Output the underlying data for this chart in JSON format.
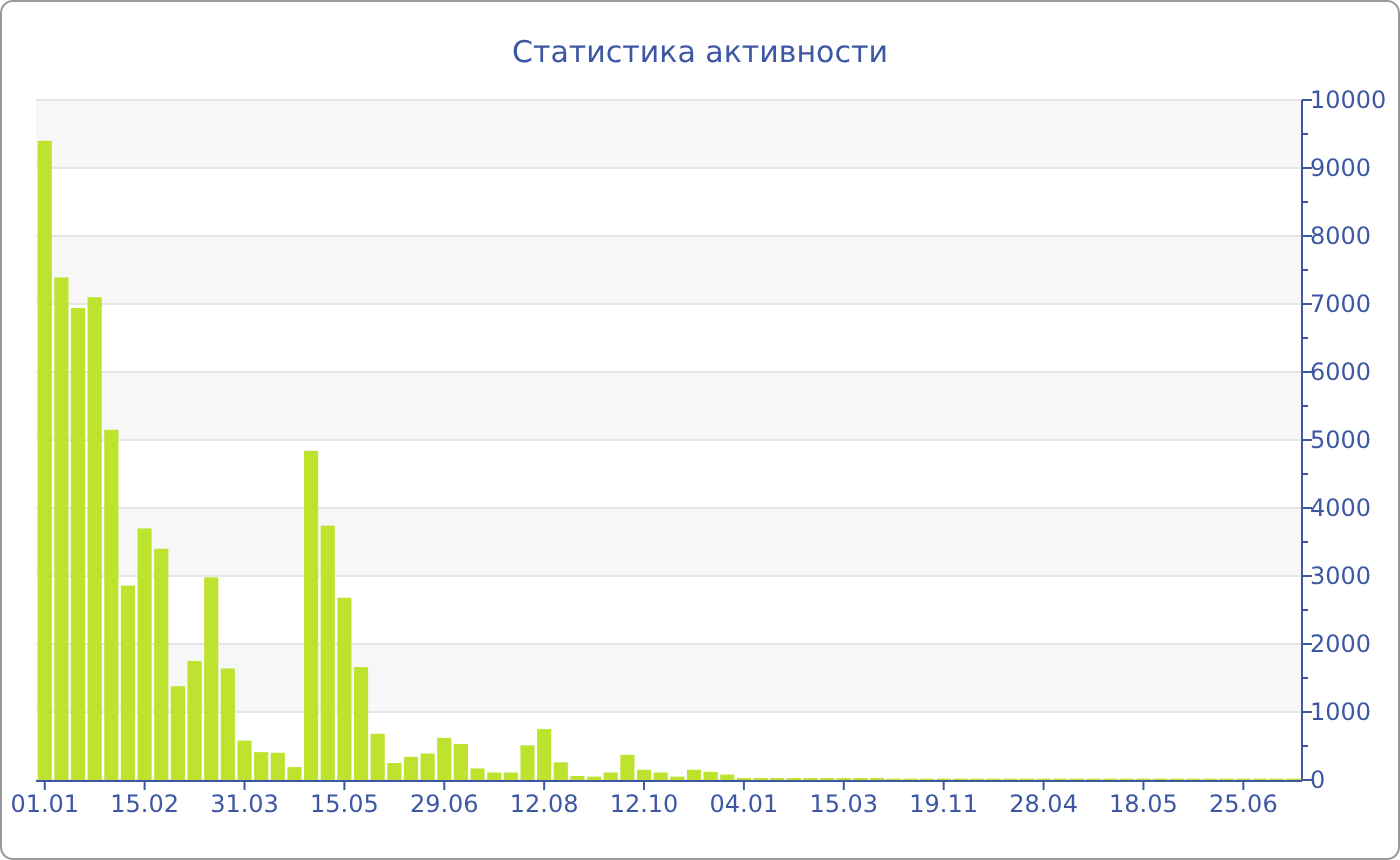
{
  "chart_data": {
    "type": "bar",
    "title": "Статистика активности",
    "categories": [
      "01.01",
      null,
      null,
      null,
      null,
      null,
      "15.02",
      null,
      null,
      null,
      null,
      null,
      "31.03",
      null,
      null,
      null,
      null,
      null,
      "15.05",
      null,
      null,
      null,
      null,
      null,
      "29.06",
      null,
      null,
      null,
      null,
      null,
      "12.08",
      null,
      null,
      null,
      null,
      null,
      "12.10",
      null,
      null,
      null,
      null,
      null,
      "04.01",
      null,
      null,
      null,
      null,
      null,
      "15.03",
      null,
      null,
      null,
      null,
      null,
      "19.11",
      null,
      null,
      null,
      null,
      null,
      "28.04",
      null,
      null,
      null,
      null,
      null,
      "18.05",
      null,
      null,
      null,
      null,
      null,
      "25.06",
      null,
      null,
      null
    ],
    "values": [
      9400,
      7390,
      6940,
      7100,
      5150,
      2860,
      3700,
      3400,
      1380,
      1750,
      2980,
      1640,
      580,
      410,
      400,
      190,
      4840,
      3740,
      2680,
      1660,
      680,
      250,
      340,
      390,
      620,
      530,
      170,
      110,
      110,
      510,
      750,
      260,
      60,
      50,
      110,
      370,
      150,
      110,
      50,
      150,
      120,
      80,
      30,
      30,
      30,
      30,
      30,
      30,
      30,
      30,
      30,
      20,
      20,
      20,
      20,
      20,
      20,
      20,
      20,
      20,
      20,
      20,
      20,
      20,
      20,
      20,
      20,
      20,
      20,
      20,
      20,
      20,
      20,
      20,
      20,
      20
    ],
    "color": "#bde32f",
    "ylim": [
      0,
      10000
    ],
    "yticks": [
      0,
      {
        "value": 500,
        "label": null
      },
      1000,
      {
        "value": 1500,
        "label": null
      },
      2000,
      {
        "value": 2500,
        "label": null
      },
      3000,
      {
        "value": 3500,
        "label": null
      },
      4000,
      {
        "value": 4500,
        "label": null
      },
      5000,
      {
        "value": 5500,
        "label": null
      },
      6000,
      {
        "value": 6500,
        "label": null
      },
      7000,
      {
        "value": 7500,
        "label": null
      },
      8000,
      {
        "value": 8500,
        "label": null
      },
      9000,
      {
        "value": 9500,
        "label": null
      },
      10000
    ],
    "grid": "y"
  }
}
